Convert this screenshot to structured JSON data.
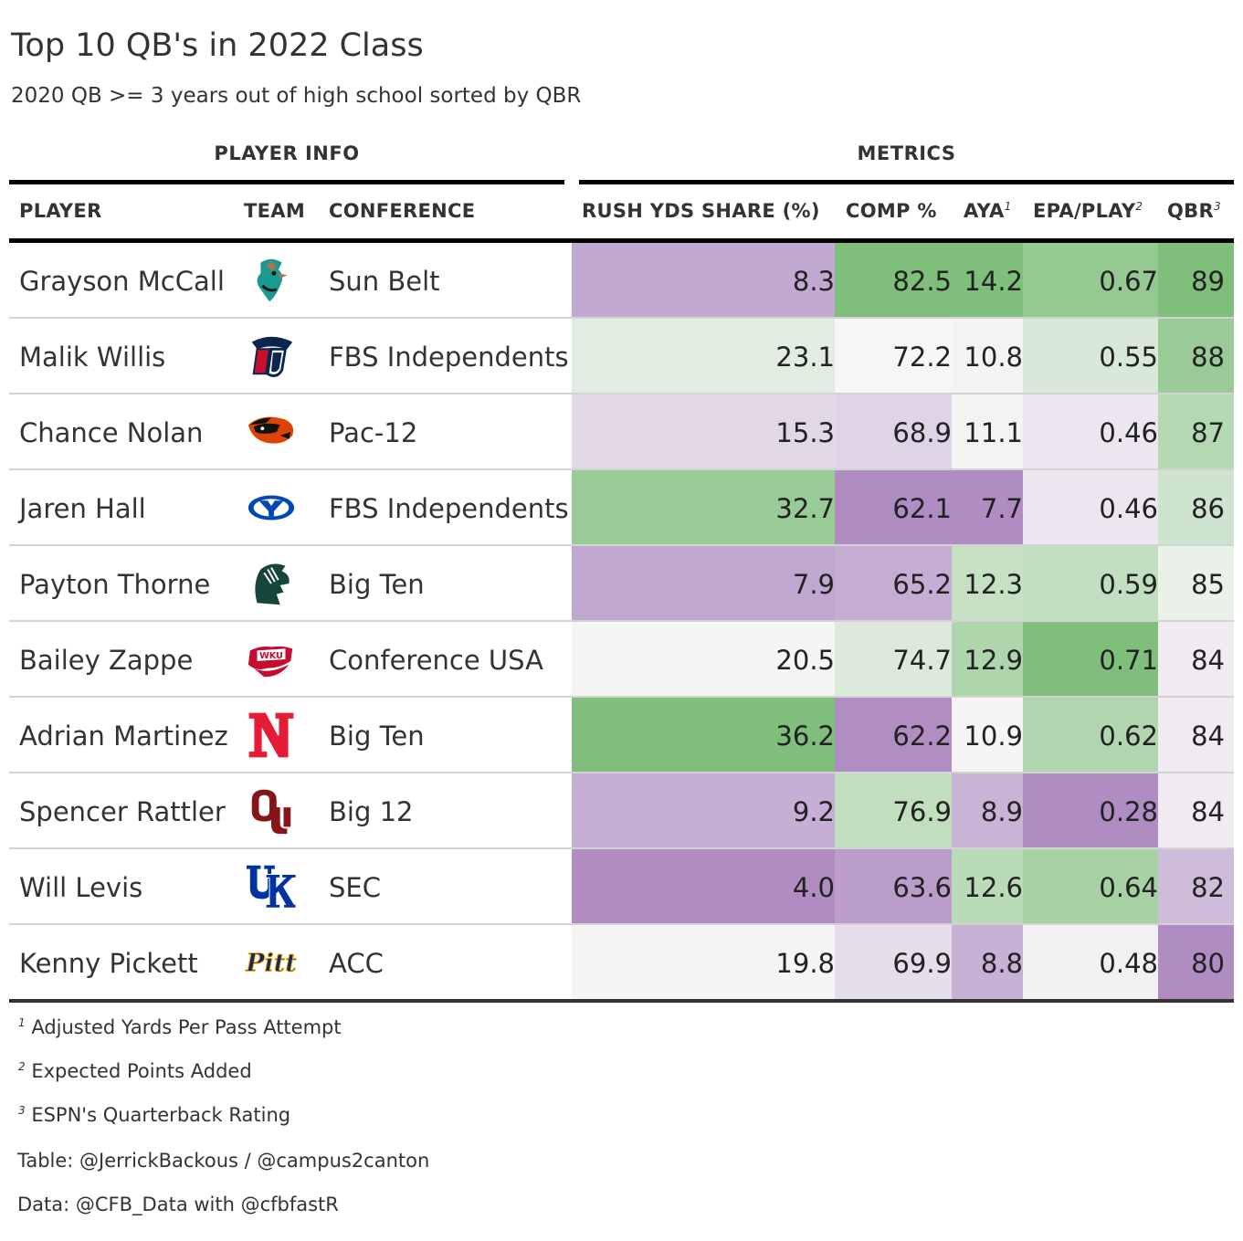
{
  "title": "Top 10 QB's in 2022 Class",
  "subtitle": "2020 QB >= 3 years out of high school sorted by QBR",
  "spanners": {
    "player_info": "PLAYER INFO",
    "metrics": "METRICS"
  },
  "columns": {
    "player": "PLAYER",
    "team": "TEAM",
    "conference": "CONFERENCE",
    "rush": "RUSH YDS SHARE (%)",
    "comp": "COMP %",
    "aya": "AYA",
    "epa": "EPA/PLAY",
    "qbr": "QBR",
    "aya_mark": "1",
    "epa_mark": "2",
    "qbr_mark": "3"
  },
  "footnotes": [
    {
      "mark": "1",
      "text": "Adjusted Yards Per Pass Attempt"
    },
    {
      "mark": "2",
      "text": "Expected Points Added"
    },
    {
      "mark": "3",
      "text": "ESPN's Quarterback Rating"
    }
  ],
  "source_notes": [
    "Table: @JerrickBackous / @campus2canton",
    "Data: @CFB_Data with @cfbfastR"
  ],
  "chart_data": {
    "type": "table",
    "color_scale": {
      "low": "#af8dc3",
      "mid": "#f7f7f7",
      "high": "#7fbf7b"
    },
    "rows": [
      {
        "player": "Grayson McCall",
        "team_logo": "coastal-carolina-chanticleer-logo-icon",
        "conference": "Sun Belt",
        "rush": "8.3",
        "comp": "82.5",
        "aya": "14.2",
        "epa": "0.67",
        "qbr": "89"
      },
      {
        "player": "Malik Willis",
        "team_logo": "liberty-flames-logo-icon",
        "conference": "FBS Independents",
        "rush": "23.1",
        "comp": "72.2",
        "aya": "10.8",
        "epa": "0.55",
        "qbr": "88"
      },
      {
        "player": "Chance Nolan",
        "team_logo": "oregon-state-beaver-logo-icon",
        "conference": "Pac-12",
        "rush": "15.3",
        "comp": "68.9",
        "aya": "11.1",
        "epa": "0.46",
        "qbr": "87"
      },
      {
        "player": "Jaren Hall",
        "team_logo": "byu-logo-icon",
        "conference": "FBS Independents",
        "rush": "32.7",
        "comp": "62.1",
        "aya": "7.7",
        "epa": "0.46",
        "qbr": "86"
      },
      {
        "player": "Payton Thorne",
        "team_logo": "michigan-state-spartan-logo-icon",
        "conference": "Big Ten",
        "rush": "7.9",
        "comp": "65.2",
        "aya": "12.3",
        "epa": "0.59",
        "qbr": "85"
      },
      {
        "player": "Bailey Zappe",
        "team_logo": "wku-towel-logo-icon",
        "conference": "Conference USA",
        "rush": "20.5",
        "comp": "74.7",
        "aya": "12.9",
        "epa": "0.71",
        "qbr": "84"
      },
      {
        "player": "Adrian Martinez",
        "team_logo": "nebraska-n-logo-icon",
        "conference": "Big Ten",
        "rush": "36.2",
        "comp": "62.2",
        "aya": "10.9",
        "epa": "0.62",
        "qbr": "84"
      },
      {
        "player": "Spencer Rattler",
        "team_logo": "oklahoma-ou-logo-icon",
        "conference": "Big 12",
        "rush": "9.2",
        "comp": "76.9",
        "aya": "8.9",
        "epa": "0.28",
        "qbr": "84"
      },
      {
        "player": "Will Levis",
        "team_logo": "kentucky-uk-logo-icon",
        "conference": "SEC",
        "rush": "4.0",
        "comp": "63.6",
        "aya": "12.6",
        "epa": "0.64",
        "qbr": "82"
      },
      {
        "player": "Kenny Pickett",
        "team_logo": "pitt-script-logo-icon",
        "conference": "ACC",
        "rush": "19.8",
        "comp": "69.9",
        "aya": "8.8",
        "epa": "0.48",
        "qbr": "80"
      }
    ]
  }
}
